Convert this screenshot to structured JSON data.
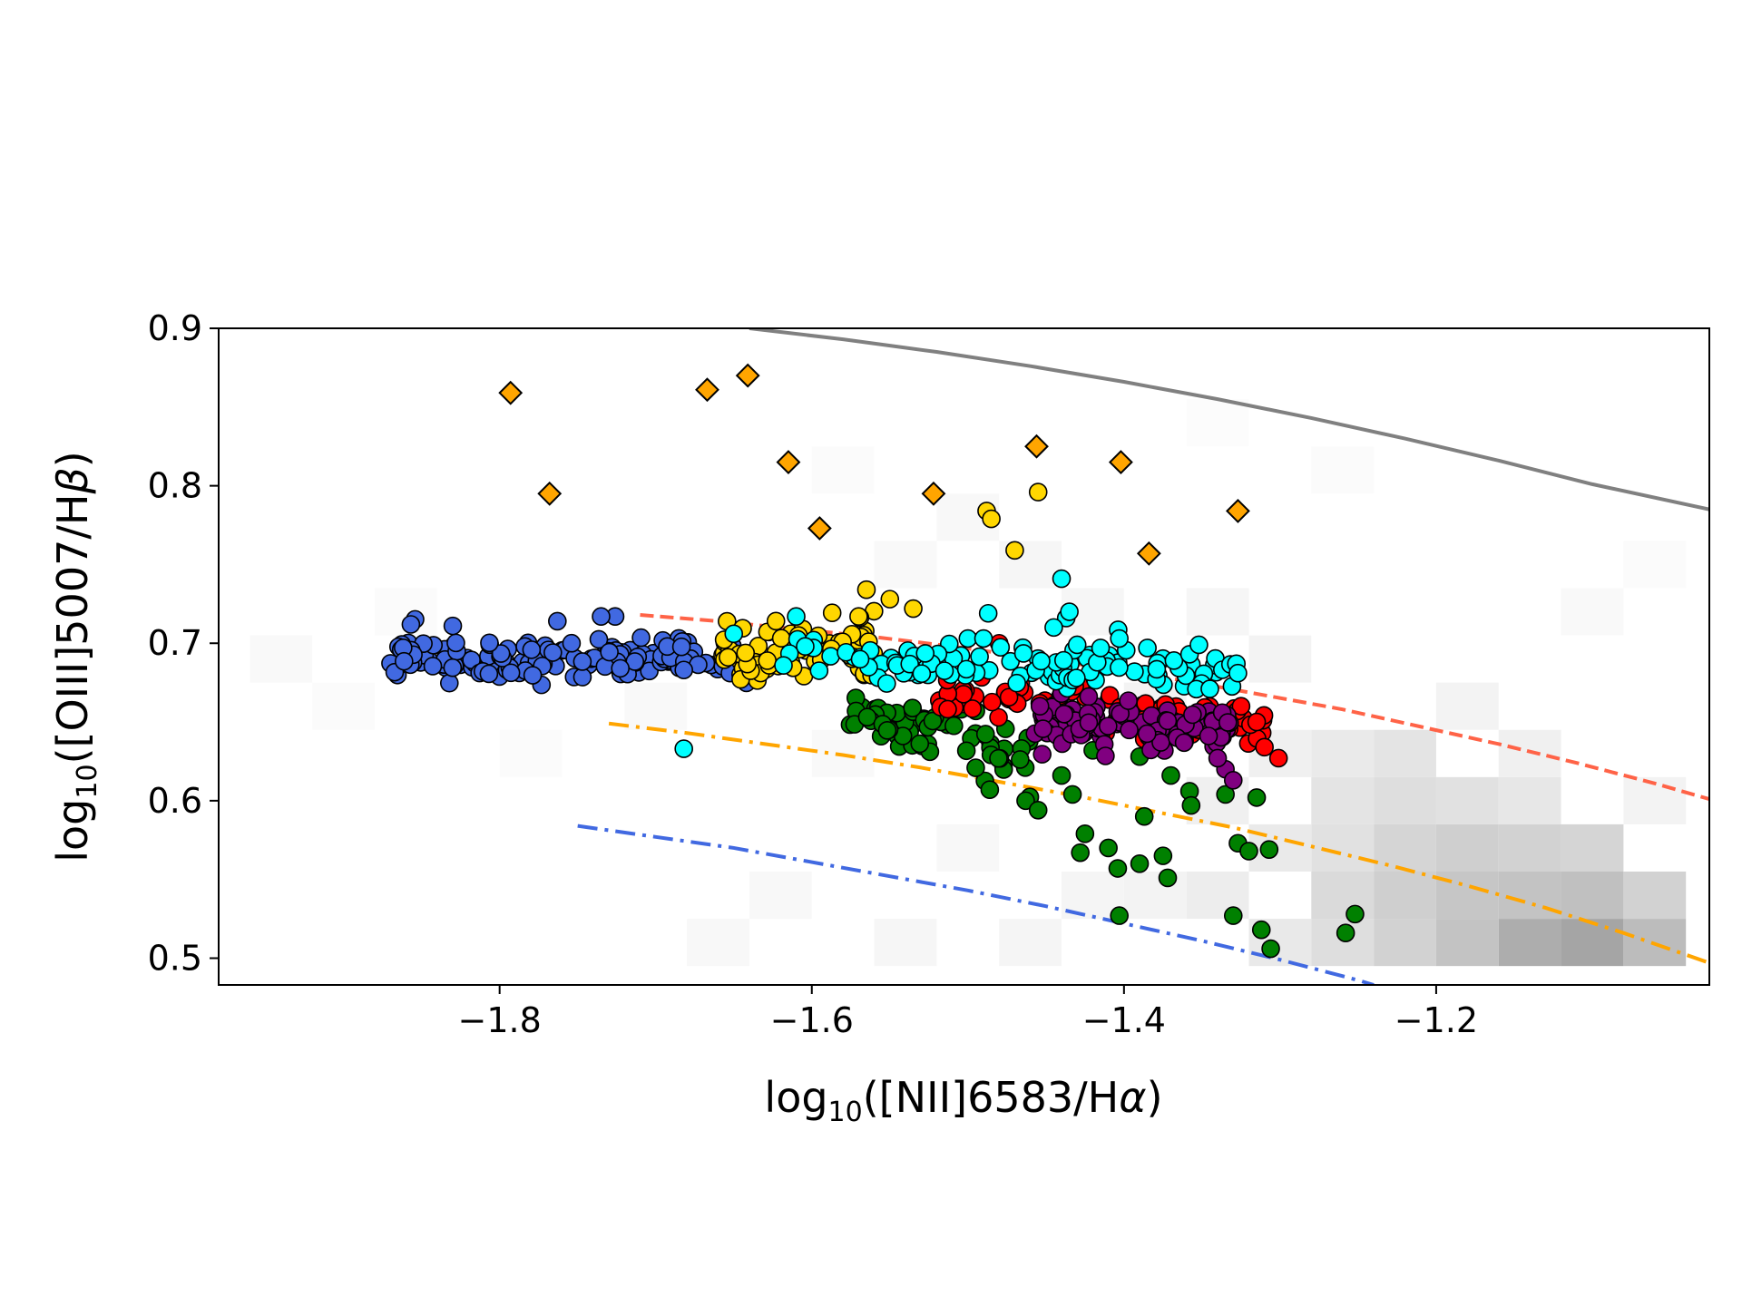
{
  "chart_data": {
    "type": "scatter",
    "xlim": [
      -1.98,
      -1.025
    ],
    "ylim": [
      0.483,
      0.9
    ],
    "xlabel": {
      "prefix": "log",
      "sub": "10",
      "body": "([NII]6583/H",
      "greek": "α",
      "suffix": ")"
    },
    "ylabel": {
      "prefix": "log",
      "sub": "10",
      "body": "([OIII]5007/H",
      "greek": "β",
      "suffix": ")"
    },
    "x_ticks": [
      -1.8,
      -1.6,
      -1.4,
      -1.2
    ],
    "x_tick_labels": [
      "−1.8",
      "−1.6",
      "−1.4",
      "−1.2"
    ],
    "y_ticks": [
      0.5,
      0.6,
      0.7,
      0.8,
      0.9
    ],
    "y_tick_labels": [
      "0.5",
      "0.6",
      "0.7",
      "0.8",
      "0.9"
    ],
    "grid": false,
    "legend": "none",
    "background_density": {
      "description_free": true,
      "cells": [
        {
          "x": -1.14,
          "y": 0.51,
          "v": 0.55
        },
        {
          "x": -1.1,
          "y": 0.51,
          "v": 0.6
        },
        {
          "x": -1.06,
          "y": 0.51,
          "v": 0.45
        },
        {
          "x": -1.18,
          "y": 0.51,
          "v": 0.4
        },
        {
          "x": -1.22,
          "y": 0.51,
          "v": 0.3
        },
        {
          "x": -1.14,
          "y": 0.54,
          "v": 0.4
        },
        {
          "x": -1.1,
          "y": 0.54,
          "v": 0.42
        },
        {
          "x": -1.06,
          "y": 0.54,
          "v": 0.3
        },
        {
          "x": -1.18,
          "y": 0.54,
          "v": 0.38
        },
        {
          "x": -1.22,
          "y": 0.54,
          "v": 0.32
        },
        {
          "x": -1.26,
          "y": 0.54,
          "v": 0.25
        },
        {
          "x": -1.14,
          "y": 0.57,
          "v": 0.3
        },
        {
          "x": -1.1,
          "y": 0.57,
          "v": 0.28
        },
        {
          "x": -1.18,
          "y": 0.57,
          "v": 0.32
        },
        {
          "x": -1.22,
          "y": 0.57,
          "v": 0.28
        },
        {
          "x": -1.26,
          "y": 0.57,
          "v": 0.2
        },
        {
          "x": -1.3,
          "y": 0.57,
          "v": 0.14
        },
        {
          "x": -1.22,
          "y": 0.6,
          "v": 0.22
        },
        {
          "x": -1.26,
          "y": 0.6,
          "v": 0.18
        },
        {
          "x": -1.18,
          "y": 0.6,
          "v": 0.2
        },
        {
          "x": -1.14,
          "y": 0.6,
          "v": 0.16
        },
        {
          "x": -1.22,
          "y": 0.63,
          "v": 0.18
        },
        {
          "x": -1.26,
          "y": 0.63,
          "v": 0.14
        },
        {
          "x": -1.3,
          "y": 0.63,
          "v": 0.1
        },
        {
          "x": -1.34,
          "y": 0.54,
          "v": 0.12
        },
        {
          "x": -1.38,
          "y": 0.54,
          "v": 0.08
        },
        {
          "x": -1.3,
          "y": 0.51,
          "v": 0.15
        },
        {
          "x": -1.26,
          "y": 0.51,
          "v": 0.22
        },
        {
          "x": -1.34,
          "y": 0.6,
          "v": 0.1
        },
        {
          "x": -1.38,
          "y": 0.66,
          "v": 0.08
        },
        {
          "x": -1.42,
          "y": 0.72,
          "v": 0.06
        },
        {
          "x": -1.46,
          "y": 0.75,
          "v": 0.06
        },
        {
          "x": -1.5,
          "y": 0.78,
          "v": 0.05
        },
        {
          "x": -1.34,
          "y": 0.72,
          "v": 0.06
        },
        {
          "x": -1.3,
          "y": 0.69,
          "v": 0.08
        },
        {
          "x": -1.18,
          "y": 0.66,
          "v": 0.08
        },
        {
          "x": -1.14,
          "y": 0.63,
          "v": 0.1
        },
        {
          "x": -1.06,
          "y": 0.6,
          "v": 0.08
        },
        {
          "x": -1.62,
          "y": 0.54,
          "v": 0.05
        },
        {
          "x": -1.66,
          "y": 0.51,
          "v": 0.05
        },
        {
          "x": -1.54,
          "y": 0.51,
          "v": 0.06
        },
        {
          "x": -1.46,
          "y": 0.51,
          "v": 0.07
        },
        {
          "x": -1.42,
          "y": 0.54,
          "v": 0.07
        },
        {
          "x": -1.5,
          "y": 0.57,
          "v": 0.05
        },
        {
          "x": -1.58,
          "y": 0.63,
          "v": 0.04
        },
        {
          "x": -1.7,
          "y": 0.66,
          "v": 0.04
        },
        {
          "x": -1.9,
          "y": 0.66,
          "v": 0.03
        },
        {
          "x": -1.94,
          "y": 0.69,
          "v": 0.04
        },
        {
          "x": -1.86,
          "y": 0.72,
          "v": 0.03
        },
        {
          "x": -1.78,
          "y": 0.63,
          "v": 0.03
        },
        {
          "x": -1.1,
          "y": 0.72,
          "v": 0.04
        },
        {
          "x": -1.06,
          "y": 0.75,
          "v": 0.03
        },
        {
          "x": -1.26,
          "y": 0.81,
          "v": 0.03
        },
        {
          "x": -1.34,
          "y": 0.84,
          "v": 0.02
        },
        {
          "x": -1.58,
          "y": 0.81,
          "v": 0.03
        },
        {
          "x": -1.54,
          "y": 0.75,
          "v": 0.04
        }
      ]
    },
    "lines": [
      {
        "style": "solid",
        "color": "#808080",
        "x": [
          -1.64,
          -1.58,
          -1.52,
          -1.46,
          -1.4,
          -1.34,
          -1.28,
          -1.22,
          -1.16,
          -1.1,
          -1.025
        ],
        "y": [
          0.9,
          0.893,
          0.885,
          0.876,
          0.866,
          0.855,
          0.843,
          0.83,
          0.816,
          0.801,
          0.785
        ]
      },
      {
        "style": "dashed",
        "color": "#FF6347",
        "x": [
          -1.71,
          -1.66,
          -1.61,
          -1.56,
          -1.51,
          -1.46,
          -1.41,
          -1.36,
          -1.31,
          -1.26,
          -1.21,
          -1.16,
          -1.11,
          -1.06,
          -1.025
        ],
        "y": [
          0.718,
          0.714,
          0.709,
          0.704,
          0.698,
          0.691,
          0.684,
          0.676,
          0.667,
          0.658,
          0.647,
          0.636,
          0.624,
          0.611,
          0.601
        ]
      },
      {
        "style": "dashdot",
        "color": "#FFA500",
        "x": [
          -1.73,
          -1.68,
          -1.63,
          -1.58,
          -1.53,
          -1.48,
          -1.43,
          -1.38,
          -1.33,
          -1.28,
          -1.23,
          -1.18,
          -1.13,
          -1.08,
          -1.025
        ],
        "y": [
          0.649,
          0.643,
          0.636,
          0.629,
          0.621,
          0.612,
          0.603,
          0.593,
          0.583,
          0.571,
          0.559,
          0.546,
          0.532,
          0.516,
          0.497
        ]
      },
      {
        "style": "dashdot",
        "color": "#4169E1",
        "x": [
          -1.75,
          -1.7,
          -1.65,
          -1.6,
          -1.55,
          -1.5,
          -1.45,
          -1.4,
          -1.35,
          -1.3,
          -1.25,
          -1.24
        ],
        "y": [
          0.584,
          0.577,
          0.57,
          0.561,
          0.552,
          0.543,
          0.533,
          0.522,
          0.511,
          0.499,
          0.486,
          0.483
        ]
      }
    ],
    "series": [
      {
        "marker": "diamond",
        "color": "#FFA500",
        "points": [
          [
            -1.793,
            0.859
          ],
          [
            -1.768,
            0.795
          ],
          [
            -1.667,
            0.861
          ],
          [
            -1.641,
            0.87
          ],
          [
            -1.615,
            0.815
          ],
          [
            -1.595,
            0.773
          ],
          [
            -1.522,
            0.795
          ],
          [
            -1.456,
            0.825
          ],
          [
            -1.402,
            0.815
          ],
          [
            -1.384,
            0.757
          ],
          [
            -1.327,
            0.784
          ]
        ]
      },
      {
        "marker": "circle",
        "color": "#4169E1",
        "cloud": {
          "x0": -1.87,
          "x1": -1.64,
          "y_start": 0.692,
          "y_end": 0.688,
          "spread": 0.011,
          "n": 150,
          "seed": 11
        },
        "points": [
          [
            -1.763,
            0.714
          ],
          [
            -1.726,
            0.717
          ],
          [
            -1.735,
            0.717
          ],
          [
            -1.83,
            0.711
          ],
          [
            -1.682,
            0.683
          ]
        ]
      },
      {
        "marker": "circle",
        "color": "#FFD700",
        "cloud": {
          "x0": -1.66,
          "x1": -1.56,
          "y_start": 0.695,
          "y_end": 0.7,
          "spread": 0.015,
          "n": 80,
          "seed": 23
        },
        "points": [
          [
            -1.488,
            0.784
          ],
          [
            -1.485,
            0.779
          ],
          [
            -1.47,
            0.759
          ],
          [
            -1.455,
            0.796
          ],
          [
            -1.565,
            0.734
          ],
          [
            -1.55,
            0.728
          ],
          [
            -1.535,
            0.722
          ],
          [
            -1.57,
            0.717
          ]
        ]
      },
      {
        "marker": "circle",
        "color": "#008000",
        "cloud": {
          "x0": -1.58,
          "x1": -1.46,
          "y_start": 0.655,
          "y_end": 0.625,
          "spread": 0.016,
          "n": 70,
          "seed": 37
        },
        "points": [
          [
            -1.486,
            0.607
          ],
          [
            -1.463,
            0.6
          ],
          [
            -1.455,
            0.594
          ],
          [
            -1.44,
            0.616
          ],
          [
            -1.433,
            0.604
          ],
          [
            -1.425,
            0.579
          ],
          [
            -1.428,
            0.567
          ],
          [
            -1.41,
            0.57
          ],
          [
            -1.404,
            0.557
          ],
          [
            -1.39,
            0.56
          ],
          [
            -1.375,
            0.565
          ],
          [
            -1.372,
            0.551
          ],
          [
            -1.387,
            0.59
          ],
          [
            -1.403,
            0.527
          ],
          [
            -1.358,
            0.606
          ],
          [
            -1.357,
            0.597
          ],
          [
            -1.335,
            0.604
          ],
          [
            -1.327,
            0.573
          ],
          [
            -1.32,
            0.568
          ],
          [
            -1.315,
            0.602
          ],
          [
            -1.307,
            0.569
          ],
          [
            -1.312,
            0.518
          ],
          [
            -1.306,
            0.506
          ],
          [
            -1.33,
            0.527
          ],
          [
            -1.258,
            0.516
          ],
          [
            -1.252,
            0.528
          ],
          [
            -1.37,
            0.616
          ],
          [
            -1.39,
            0.628
          ],
          [
            -1.42,
            0.632
          ],
          [
            -1.44,
            0.64
          ]
        ]
      },
      {
        "marker": "circle",
        "color": "#FF0000",
        "cloud": {
          "x0": -1.52,
          "x1": -1.31,
          "y_start": 0.668,
          "y_end": 0.65,
          "spread": 0.011,
          "n": 90,
          "seed": 53
        },
        "points": [
          [
            -1.301,
            0.627
          ],
          [
            -1.31,
            0.634
          ],
          [
            -1.315,
            0.65
          ],
          [
            -1.325,
            0.66
          ],
          [
            -1.48,
            0.7
          ]
        ]
      },
      {
        "marker": "circle",
        "color": "#800080",
        "cloud": {
          "x0": -1.46,
          "x1": -1.33,
          "y_start": 0.65,
          "y_end": 0.645,
          "spread": 0.013,
          "n": 110,
          "seed": 71
        },
        "points": [
          [
            -1.335,
            0.62
          ],
          [
            -1.34,
            0.627
          ],
          [
            -1.33,
            0.613
          ],
          [
            -1.44,
            0.668
          ]
        ]
      },
      {
        "marker": "circle",
        "color": "#00FFFF",
        "cloud": {
          "x0": -1.62,
          "x1": -1.33,
          "y_start": 0.693,
          "y_end": 0.678,
          "spread": 0.012,
          "n": 110,
          "seed": 89
        },
        "points": [
          [
            -1.682,
            0.633
          ],
          [
            -1.44,
            0.741
          ],
          [
            -1.437,
            0.716
          ],
          [
            -1.435,
            0.72
          ],
          [
            -1.487,
            0.719
          ],
          [
            -1.43,
            0.699
          ],
          [
            -1.415,
            0.697
          ],
          [
            -1.403,
            0.703
          ],
          [
            -1.385,
            0.697
          ],
          [
            -1.368,
            0.689
          ],
          [
            -1.358,
            0.693
          ],
          [
            -1.352,
            0.699
          ],
          [
            -1.345,
            0.671
          ],
          [
            -1.328,
            0.687
          ],
          [
            -1.327,
            0.681
          ],
          [
            -1.445,
            0.71
          ],
          [
            -1.5,
            0.703
          ],
          [
            -1.49,
            0.703
          ],
          [
            -1.61,
            0.717
          ],
          [
            -1.65,
            0.706
          ]
        ]
      }
    ]
  }
}
